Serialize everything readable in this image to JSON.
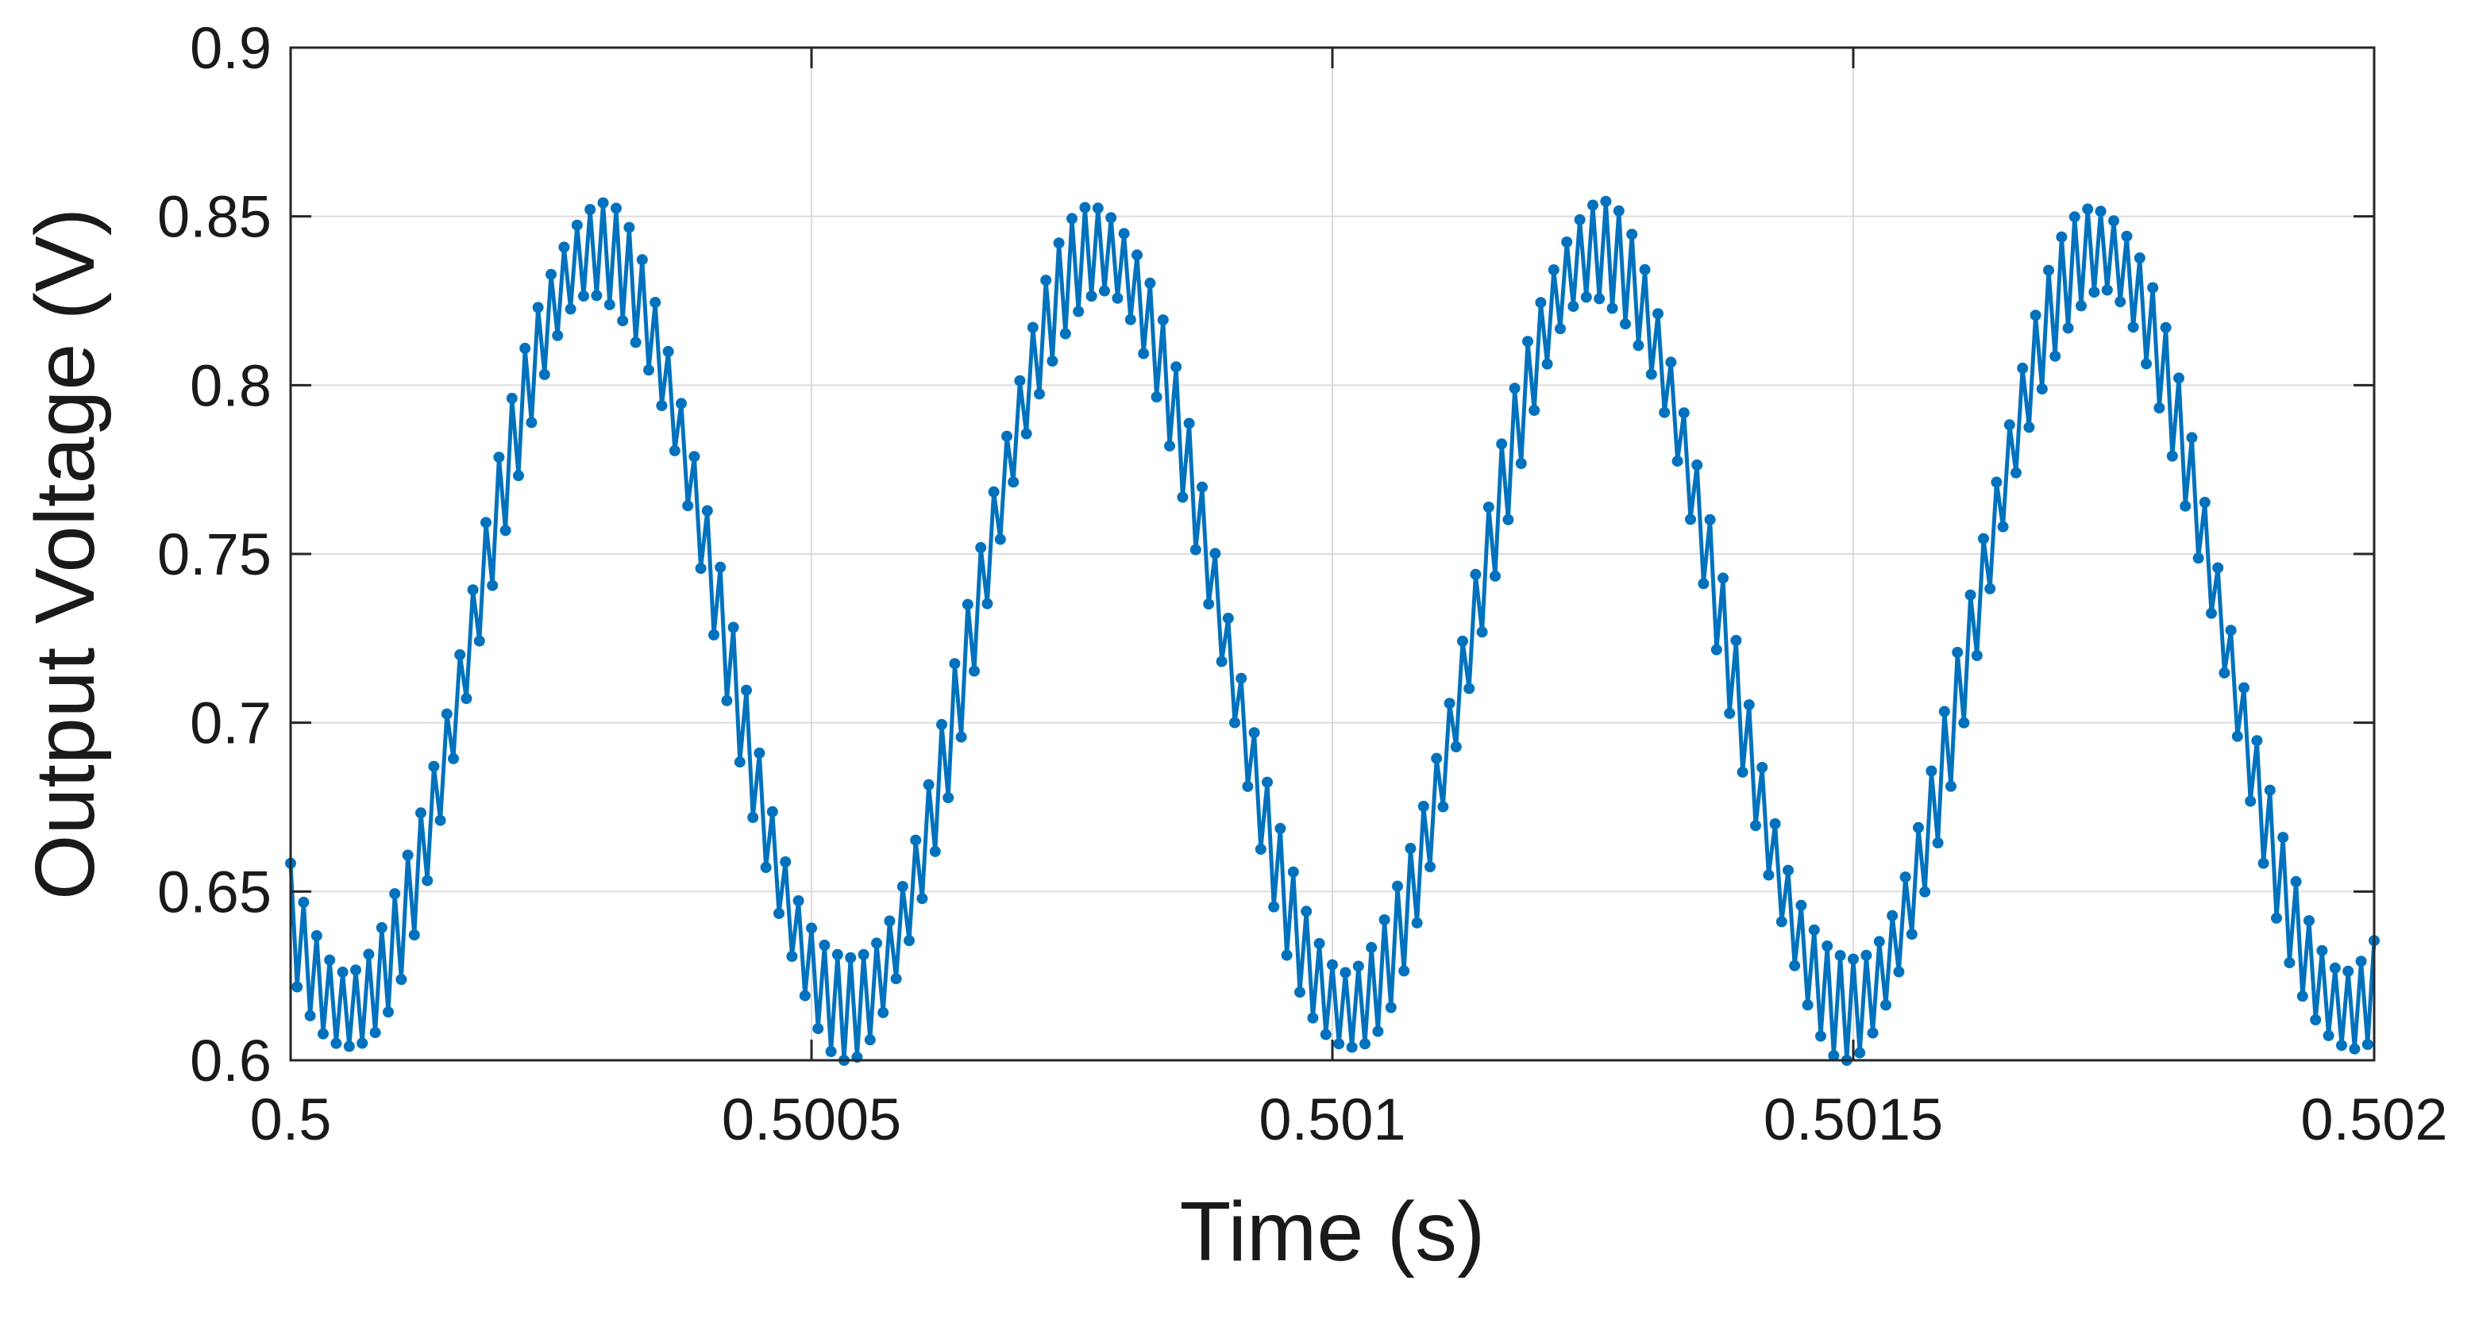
{
  "chart_data": {
    "type": "line",
    "title": "",
    "xlabel": "Time (s)",
    "ylabel": "Output Voltage (V)",
    "xlim": [
      0.5,
      0.502
    ],
    "ylim": [
      0.6,
      0.9
    ],
    "x_ticks": [
      0.5,
      0.5005,
      0.501,
      0.5015,
      0.502
    ],
    "x_tick_labels": [
      "0.5",
      "0.5005",
      "0.501",
      "0.5015",
      "0.502"
    ],
    "y_ticks": [
      0.6,
      0.65,
      0.7,
      0.75,
      0.8,
      0.85,
      0.9
    ],
    "y_tick_labels": [
      "0.6",
      "0.65",
      "0.7",
      "0.75",
      "0.8",
      "0.85",
      "0.9"
    ],
    "grid": true,
    "legend": "none",
    "markers": true,
    "series": [
      {
        "color": "#0072BD",
        "fundamental_frequency_hz": 2083.3,
        "fundamental_phase_rad": -2.29,
        "envelope_center_v": 0.7275,
        "envelope_amplitude_v": 0.1125,
        "sample_period_s": 6.25e-06,
        "ripple_amplitude_v": 0.0155,
        "sample_count": 321
      }
    ]
  }
}
